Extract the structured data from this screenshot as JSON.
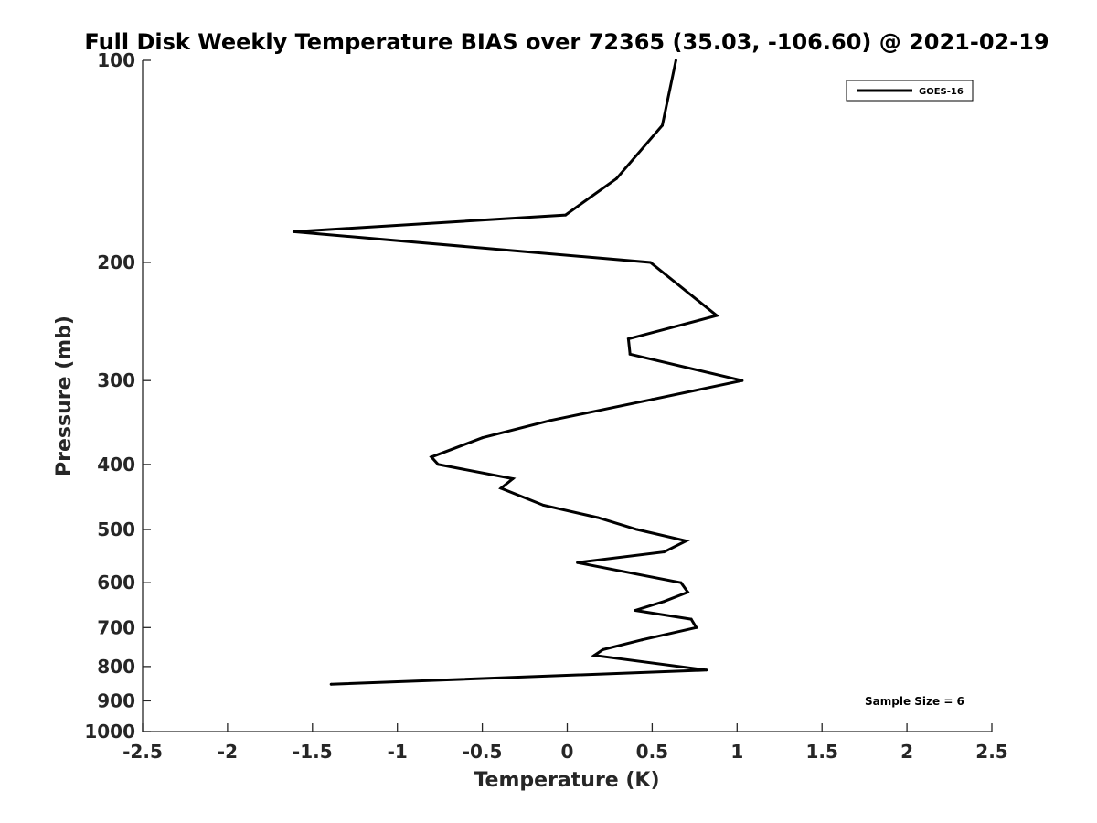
{
  "chart_data": {
    "type": "line",
    "title": "Full Disk Weekly Temperature BIAS over 72365 (35.03, -106.60) @ 2021-02-19",
    "xlabel": "Temperature (K)",
    "ylabel": "Pressure (mb)",
    "xlim": [
      -2.5,
      2.5
    ],
    "ylim": [
      1000,
      100
    ],
    "y_scale": "log",
    "y_reversed": true,
    "grid": false,
    "x_ticks": [
      -2.5,
      -2,
      -1.5,
      -1,
      -0.5,
      0,
      0.5,
      1,
      1.5,
      2,
      2.5
    ],
    "x_tick_labels": [
      "-2.5",
      "-2",
      "-1.5",
      "-1",
      "-0.5",
      "0",
      "0.5",
      "1",
      "1.5",
      "2",
      "2.5"
    ],
    "y_ticks": [
      100,
      200,
      300,
      400,
      500,
      600,
      700,
      800,
      900,
      1000
    ],
    "y_tick_labels": [
      "100",
      "200",
      "300",
      "400",
      "500",
      "600",
      "700",
      "800",
      "900",
      "1000"
    ],
    "legend": {
      "position": "top-right",
      "entries": [
        "GOES-16"
      ]
    },
    "annotation": "Sample Size = 6",
    "series": [
      {
        "name": "GOES-16",
        "color": "#000000",
        "points": [
          [
            0.64,
            100
          ],
          [
            0.56,
            125
          ],
          [
            0.29,
            150
          ],
          [
            -0.01,
            170
          ],
          [
            -1.61,
            180
          ],
          [
            0.49,
            200
          ],
          [
            0.88,
            240
          ],
          [
            0.36,
            260
          ],
          [
            0.37,
            274
          ],
          [
            1.03,
            300
          ],
          [
            0.5,
            320
          ],
          [
            -0.1,
            344
          ],
          [
            -0.5,
            365
          ],
          [
            -0.8,
            390
          ],
          [
            -0.76,
            400
          ],
          [
            -0.32,
            420
          ],
          [
            -0.39,
            434
          ],
          [
            -0.14,
            460
          ],
          [
            0.18,
            480
          ],
          [
            0.41,
            500
          ],
          [
            0.7,
            520
          ],
          [
            0.57,
            540
          ],
          [
            0.06,
            560
          ],
          [
            0.67,
            600
          ],
          [
            0.71,
            620
          ],
          [
            0.57,
            640
          ],
          [
            0.4,
            660
          ],
          [
            0.73,
            680
          ],
          [
            0.76,
            700
          ],
          [
            0.44,
            730
          ],
          [
            0.21,
            755
          ],
          [
            0.16,
            770
          ],
          [
            0.82,
            810
          ],
          [
            -1.39,
            850
          ]
        ]
      }
    ]
  }
}
